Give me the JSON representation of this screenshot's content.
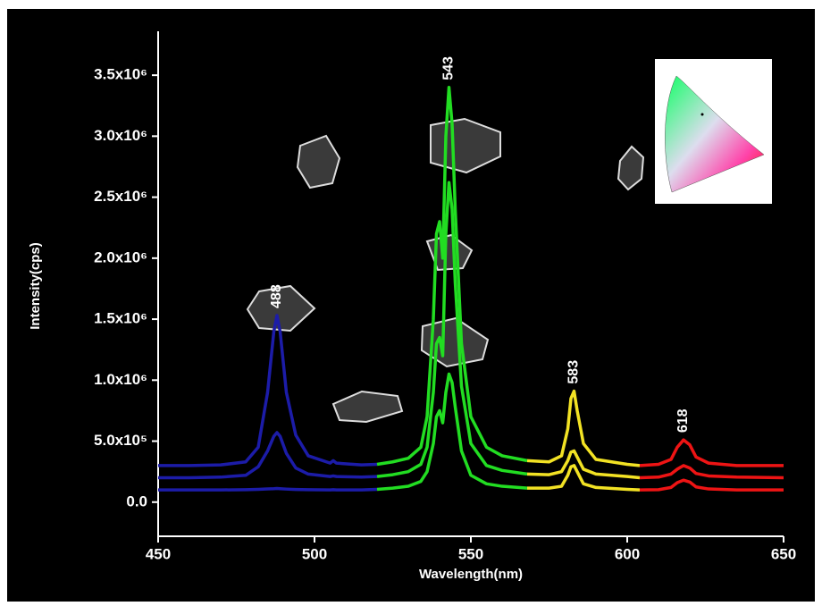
{
  "chart_data": {
    "type": "line",
    "x_label": "Wavelength(nm)",
    "y_label": "Intensity(cps)",
    "xlim": [
      450,
      650
    ],
    "xticks": [
      450,
      500,
      550,
      600,
      650
    ],
    "ylim": [
      -280000,
      3860000
    ],
    "yticks": [
      {
        "value": 0,
        "label": "0.0"
      },
      {
        "value": 500000,
        "label": "5.0x10⁵"
      },
      {
        "value": 1000000,
        "label": "1.0x10⁶"
      },
      {
        "value": 1500000,
        "label": "1.5x10⁶"
      },
      {
        "value": 2000000,
        "label": "2.0x10⁶"
      },
      {
        "value": 2500000,
        "label": "2.5x10⁶"
      },
      {
        "value": 3000000,
        "label": "3.0x10⁶"
      },
      {
        "value": 3500000,
        "label": "3.5x10⁶"
      }
    ],
    "color_regions": [
      {
        "xlim": [
          450,
          520
        ],
        "color": "#1c1ca8"
      },
      {
        "xlim": [
          520,
          568
        ],
        "color": "#22dd22"
      },
      {
        "xlim": [
          568,
          604
        ],
        "color": "#f2e224"
      },
      {
        "xlim": [
          604,
          650
        ],
        "color": "#ee1414"
      }
    ],
    "peaks": [
      488,
      543,
      583,
      618
    ],
    "x": [
      450,
      460,
      470,
      478,
      482,
      485,
      487,
      488,
      489,
      491,
      494,
      498,
      505,
      506,
      507,
      515,
      520,
      525,
      530,
      534,
      536,
      538,
      539,
      540,
      541,
      542,
      543,
      544,
      545,
      547,
      550,
      555,
      560,
      568,
      575,
      579,
      581,
      582,
      583,
      584,
      586,
      590,
      600,
      604,
      610,
      614,
      616,
      618,
      620,
      622,
      626,
      635,
      650
    ],
    "series": [
      {
        "values": [
          300000,
          300000,
          305000,
          330000,
          450000,
          900000,
          1400000,
          1530000,
          1400000,
          900000,
          550000,
          380000,
          320000,
          340000,
          320000,
          305000,
          310000,
          330000,
          360000,
          450000,
          700000,
          1500000,
          2200000,
          2300000,
          2000000,
          3000000,
          3400000,
          3100000,
          2400000,
          1300000,
          700000,
          450000,
          380000,
          340000,
          330000,
          380000,
          600000,
          850000,
          910000,
          750000,
          480000,
          350000,
          310000,
          300000,
          310000,
          350000,
          450000,
          510000,
          470000,
          370000,
          320000,
          300000,
          300000
        ]
      },
      {
        "values": [
          200000,
          200000,
          205000,
          220000,
          290000,
          420000,
          540000,
          570000,
          540000,
          400000,
          280000,
          230000,
          210000,
          215000,
          210000,
          205000,
          210000,
          225000,
          250000,
          310000,
          450000,
          900000,
          1300000,
          1350000,
          1200000,
          2200000,
          2620000,
          2400000,
          1800000,
          950000,
          480000,
          300000,
          260000,
          230000,
          225000,
          250000,
          340000,
          410000,
          420000,
          370000,
          270000,
          230000,
          210000,
          200000,
          205000,
          230000,
          270000,
          300000,
          280000,
          235000,
          215000,
          205000,
          200000
        ]
      },
      {
        "values": [
          100000,
          100000,
          100000,
          102000,
          105000,
          108000,
          110000,
          112000,
          110000,
          107000,
          104000,
          102000,
          100000,
          102000,
          100000,
          100000,
          105000,
          115000,
          130000,
          170000,
          250000,
          480000,
          700000,
          750000,
          650000,
          900000,
          1050000,
          980000,
          780000,
          420000,
          220000,
          150000,
          130000,
          115000,
          115000,
          130000,
          220000,
          290000,
          300000,
          250000,
          150000,
          120000,
          105000,
          100000,
          102000,
          120000,
          160000,
          180000,
          165000,
          125000,
          108000,
          100000,
          100000
        ]
      }
    ]
  }
}
